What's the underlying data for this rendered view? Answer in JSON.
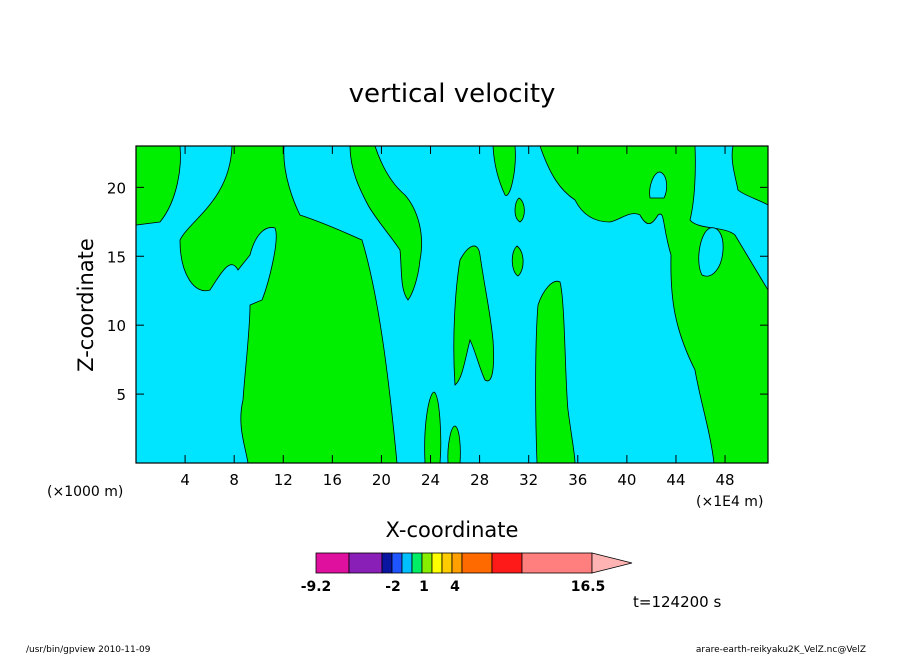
{
  "chart_data": {
    "type": "heatmap",
    "title": "vertical velocity",
    "xlabel": "X-coordinate",
    "ylabel": "Z-coordinate",
    "x_unit_left": "(×1000 m)",
    "x_unit_right": "(×1E4 m)",
    "xlim": [
      0,
      51.5
    ],
    "ylim": [
      0,
      23
    ],
    "x_ticks": [
      4,
      8,
      12,
      16,
      20,
      24,
      28,
      32,
      36,
      40,
      44,
      48
    ],
    "y_ticks": [
      5,
      10,
      15,
      20
    ],
    "colors": {
      "negative": "#00e5ff",
      "positive": "#00ee00"
    },
    "colorbar": {
      "colors": [
        "#e0109f",
        "#8a1fb8",
        "#0a16a0",
        "#1f55ff",
        "#00c0ff",
        "#00ee66",
        "#88ee00",
        "#ffff00",
        "#ffcc00",
        "#ffa000",
        "#ff6a00",
        "#ff1a1a",
        "#ff7f7f",
        "#ffb3b3"
      ],
      "labels": [
        "-9.2",
        "-2",
        "1",
        "4",
        "16.5"
      ]
    },
    "time_label": "t=124200 s"
  },
  "footer": {
    "left": "/usr/bin/gpview   2010-11-09",
    "right": "arare-earth-reikyaku2K_VelZ.nc@VelZ"
  }
}
